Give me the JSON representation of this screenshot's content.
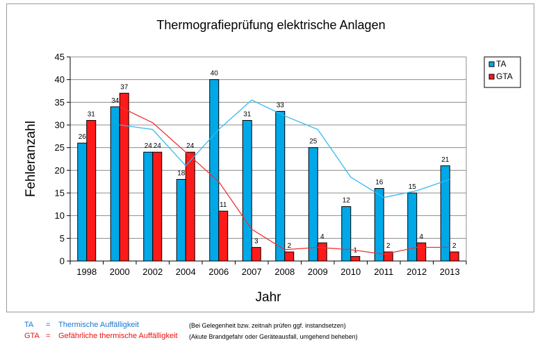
{
  "chart_data": {
    "type": "bar",
    "title": "Thermografieprüfung elektrische Anlagen",
    "xlabel": "Jahr",
    "ylabel": "Fehleranzahl",
    "ylim": [
      0,
      45
    ],
    "yticks": [
      0,
      5,
      10,
      15,
      20,
      25,
      30,
      35,
      40,
      45
    ],
    "categories": [
      "1998",
      "2000",
      "2002",
      "2004",
      "2006",
      "2007",
      "2008",
      "2009",
      "2010",
      "2011",
      "2012",
      "2013"
    ],
    "series": [
      {
        "name": "TA",
        "color": "#00a8e8",
        "values": [
          26,
          34,
          24,
          18,
          40,
          31,
          33,
          25,
          12,
          16,
          15,
          21
        ]
      },
      {
        "name": "GTA",
        "color": "#ff1a1a",
        "values": [
          31,
          37,
          24,
          24,
          11,
          3,
          2,
          4,
          1,
          2,
          4,
          2
        ]
      }
    ],
    "trendlines": [
      {
        "series": "TA",
        "color": "#33bbee"
      },
      {
        "series": "GTA",
        "color": "#ee3333"
      }
    ],
    "legend_position": "right",
    "grid": true
  },
  "footnotes": [
    {
      "abbr": "TA",
      "eq": "=",
      "text": "Thermische Auffälligkeit",
      "note": "(Bei Gelegenheit bzw. zeitnah prüfen ggf. instandsetzen)",
      "color": "#1a75d1"
    },
    {
      "abbr": "GTA",
      "eq": "=",
      "text": "Gefährliche thermische Auffälligkeit",
      "note": "(Akute Brandgefahr oder Geräteausfall, umgehend beheben)",
      "color": "#ee1111"
    }
  ]
}
